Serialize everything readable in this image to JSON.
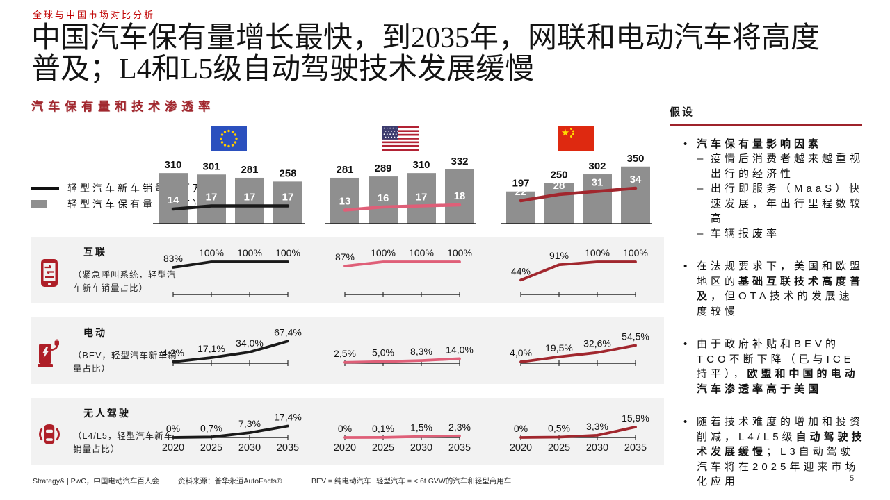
{
  "eyebrow": "全球与中国市场对比分析",
  "title_lines": [
    "中国汽车保有量增长最快，到2035年，网联和电动汽车将高度",
    "普及；L4和L5级自动驾驶技术发展缓慢"
  ],
  "subtitle": "汽车保有量和技术渗透率",
  "legend": {
    "line_label": "轻型汽车新车销量（百万）",
    "bar_label": "轻型汽车保有量（百万）"
  },
  "colors": {
    "accent_red": "#C00000",
    "dark_red": "#9E232B",
    "china_line": "#A1272E",
    "us_line": "#DF5F78",
    "eu_line": "#1A1A1A",
    "bar_gray": "#8F8F8F",
    "row_bg": "#F2F2F2",
    "icon_red": "#AE1F28"
  },
  "chart_data": {
    "type": "combo",
    "years": [
      "2020",
      "2025",
      "2030",
      "2035"
    ],
    "top_chart": {
      "bar_series_label": "轻型汽车保有量（百万）",
      "line_series_label": "轻型汽车新车销量（百万）",
      "regions": [
        {
          "id": "eu",
          "name": "欧盟",
          "flag": "eu-flag-icon",
          "parc": [
            310,
            301,
            281,
            258
          ],
          "sales": [
            14,
            17,
            17,
            17
          ],
          "line_color": "#1A1A1A"
        },
        {
          "id": "us",
          "name": "美国",
          "flag": "us-flag-icon",
          "parc": [
            281,
            289,
            310,
            332
          ],
          "sales": [
            13,
            16,
            17,
            18
          ],
          "line_color": "#DF5F78"
        },
        {
          "id": "cn",
          "name": "中国",
          "flag": "cn-flag-icon",
          "parc": [
            197,
            250,
            302,
            350
          ],
          "sales": [
            22,
            28,
            31,
            34
          ],
          "line_color": "#A1272E"
        }
      ]
    },
    "tech_rows": [
      {
        "title": "互联",
        "desc": "（紧急呼叫系统，轻型汽车新车销量占比）",
        "icon": "connected-phone-icon",
        "series": [
          {
            "region": "欧盟",
            "values": [
              83,
              100,
              100,
              100
            ],
            "labels": [
              "83%",
              "100%",
              "100%",
              "100%"
            ]
          },
          {
            "region": "美国",
            "values": [
              87,
              100,
              100,
              100
            ],
            "labels": [
              "87%",
              "100%",
              "100%",
              "100%"
            ]
          },
          {
            "region": "中国",
            "values": [
              44,
              91,
              100,
              100
            ],
            "labels": [
              "44%",
              "91%",
              "100%",
              "100%"
            ]
          }
        ]
      },
      {
        "title": "电动",
        "desc": "（BEV，轻型汽车新车销量占比）",
        "icon": "ev-charger-icon",
        "series": [
          {
            "region": "欧盟",
            "values": [
              4.2,
              17.1,
              34.0,
              67.4
            ],
            "labels": [
              "4,2%",
              "17,1%",
              "34,0%",
              "67,4%"
            ]
          },
          {
            "region": "美国",
            "values": [
              2.5,
              5.0,
              8.3,
              14.0
            ],
            "labels": [
              "2,5%",
              "5,0%",
              "8,3%",
              "14,0%"
            ]
          },
          {
            "region": "中国",
            "values": [
              4.0,
              19.5,
              32.6,
              54.5
            ],
            "labels": [
              "4,0%",
              "19,5%",
              "32,6%",
              "54,5%"
            ]
          }
        ]
      },
      {
        "title": "无人驾驶",
        "desc": "（L4/L5，轻型汽车新车销量占比）",
        "icon": "autonomous-car-icon",
        "series": [
          {
            "region": "欧盟",
            "values": [
              0,
              0.7,
              7.3,
              17.4
            ],
            "labels": [
              "0%",
              "0,7%",
              "7,3%",
              "17,4%"
            ]
          },
          {
            "region": "美国",
            "values": [
              0,
              0.1,
              1.5,
              2.3
            ],
            "labels": [
              "0%",
              "0,1%",
              "1,5%",
              "2,3%"
            ]
          },
          {
            "region": "中国",
            "values": [
              0,
              0.5,
              3.3,
              15.9
            ],
            "labels": [
              "0%",
              "0,5%",
              "3,3%",
              "15,9%"
            ]
          }
        ]
      }
    ]
  },
  "sidebar": {
    "title": "假设",
    "bullets": [
      {
        "level": 1,
        "segments": [
          {
            "text": "汽车保有量影响因素",
            "bold": true
          }
        ]
      },
      {
        "level": 2,
        "segments": [
          {
            "text": "疫情后消费者越来越重视出行的经济性"
          }
        ]
      },
      {
        "level": 2,
        "segments": [
          {
            "text": "出行即服务（MaaS）快速发展，年出行里程数较高"
          }
        ]
      },
      {
        "level": 2,
        "segments": [
          {
            "text": "车辆报废率"
          }
        ]
      },
      {
        "level": 1,
        "segments": [
          {
            "text": "在法规要求下，美国和欧盟地区的"
          },
          {
            "text": "基础互联技术高度普及",
            "bold": true
          },
          {
            "text": "，但OTA技术的发展速度较慢"
          }
        ]
      },
      {
        "level": 1,
        "segments": [
          {
            "text": "由于政府补贴和BEV的TCO不断下降（已与ICE持平），"
          },
          {
            "text": "欧盟和中国的电动汽车渗透率高于美国",
            "bold": true
          }
        ]
      },
      {
        "level": 1,
        "segments": [
          {
            "text": "随着技术难度的增加和投资削减，L4/L5级"
          },
          {
            "text": "自动驾驶技术发展缓慢",
            "bold": true
          },
          {
            "text": "；L3自动驾驶汽车将在2025年迎来市场化应用"
          }
        ]
      }
    ]
  },
  "footer": {
    "left": "Strategy& | PwC，中国电动汽车百人会",
    "source": "资料来源：普华永道AutoFacts®",
    "note1": "BEV = 纯电动汽车",
    "note2": "轻型汽车 = < 6t GVW的汽车和轻型商用车",
    "page": "5"
  }
}
